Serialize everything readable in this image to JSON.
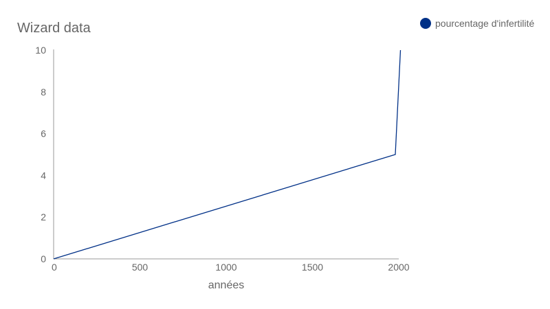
{
  "chart_data": {
    "type": "line",
    "title": "Wizard data",
    "xlabel": "années",
    "ylabel": "",
    "xlim": [
      0,
      2000
    ],
    "ylim": [
      0,
      10
    ],
    "xticks": [
      0,
      500,
      1000,
      1500,
      2000
    ],
    "yticks": [
      0,
      2,
      4,
      6,
      8,
      10
    ],
    "grid": false,
    "legend_position": "top-right",
    "series": [
      {
        "name": "pourcentage d'infertilité",
        "color": "#003087",
        "x": [
          0,
          1980,
          2010
        ],
        "y": [
          0,
          5,
          10
        ]
      }
    ]
  }
}
